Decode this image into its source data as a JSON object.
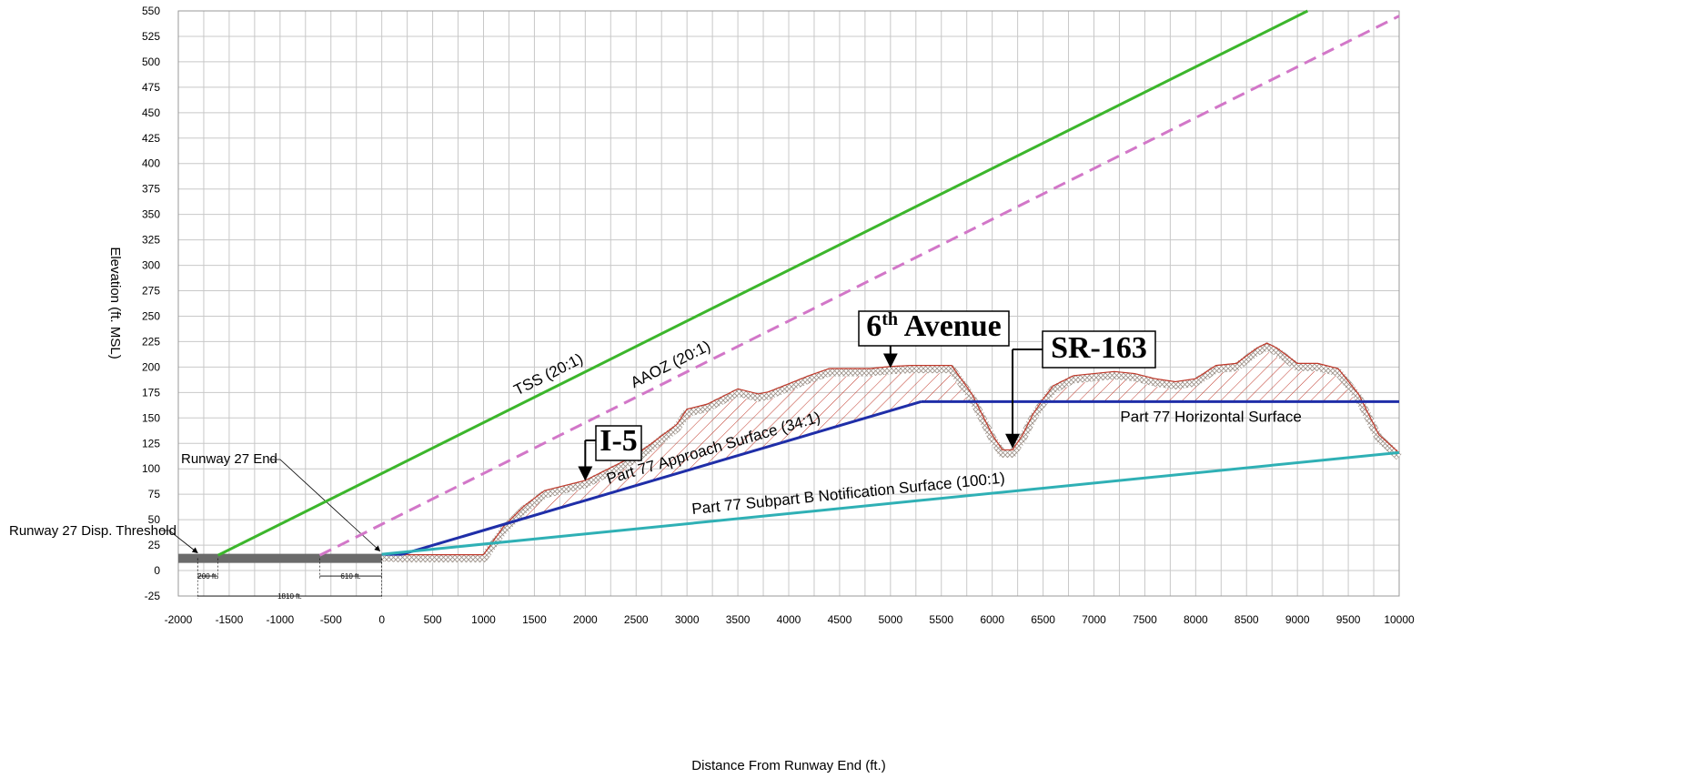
{
  "chart_data": {
    "type": "line",
    "xlabel": "Distance From Runway End (ft.)",
    "ylabel": "Elevation (ft. MSL)",
    "xlim": [
      -2000,
      10000
    ],
    "ylim": [
      -25,
      550
    ],
    "x_ticks": [
      -2000,
      -1500,
      -1000,
      -500,
      0,
      500,
      1000,
      1500,
      2000,
      2500,
      3000,
      3500,
      4000,
      4500,
      5000,
      5500,
      6000,
      6500,
      7000,
      7500,
      8000,
      8500,
      9000,
      9500,
      10000
    ],
    "y_ticks": [
      -25,
      0,
      25,
      50,
      75,
      100,
      125,
      150,
      175,
      200,
      225,
      250,
      275,
      300,
      325,
      350,
      375,
      400,
      425,
      450,
      475,
      500,
      525,
      550
    ],
    "grid": true,
    "series": [
      {
        "name": "TSS (20:1)",
        "color": "#3cb62c",
        "style": "solid",
        "x": [
          -1610,
          9100
        ],
        "y": [
          15,
          550
        ]
      },
      {
        "name": "AAOZ (20:1)",
        "color": "#d277c8",
        "style": "dashed",
        "x": [
          -610,
          10000
        ],
        "y": [
          15,
          545
        ]
      },
      {
        "name": "Part 77 Approach Surface (34:1)",
        "color": "#1f2ea8",
        "style": "solid",
        "x": [
          0,
          200,
          5300
        ],
        "y": [
          16,
          16,
          166
        ]
      },
      {
        "name": "Part 77 Horizontal Surface",
        "color": "#1f2ea8",
        "style": "solid",
        "x": [
          5300,
          10000
        ],
        "y": [
          166,
          166
        ]
      },
      {
        "name": "Part 77 Subpart B Notification Surface (100:1)",
        "color": "#2fb0b5",
        "style": "solid",
        "x": [
          0,
          10000
        ],
        "y": [
          16,
          116
        ]
      }
    ],
    "terrain": {
      "x": [
        0,
        200,
        500,
        800,
        1000,
        1200,
        1400,
        1600,
        1800,
        2000,
        2200,
        2500,
        2700,
        2900,
        3000,
        3200,
        3500,
        3700,
        3800,
        4000,
        4200,
        4400,
        4600,
        4800,
        5000,
        5200,
        5400,
        5600,
        5800,
        6000,
        6100,
        6200,
        6300,
        6400,
        6500,
        6600,
        6800,
        7000,
        7200,
        7400,
        7600,
        7800,
        8000,
        8200,
        8400,
        8600,
        8700,
        8800,
        9000,
        9200,
        9400,
        9600,
        9800,
        10000
      ],
      "y": [
        13,
        12,
        12,
        12,
        12,
        40,
        60,
        75,
        80,
        85,
        95,
        110,
        125,
        140,
        155,
        160,
        175,
        170,
        172,
        180,
        188,
        195,
        195,
        195,
        197,
        198,
        198,
        198,
        170,
        130,
        115,
        115,
        130,
        150,
        165,
        178,
        188,
        190,
        192,
        190,
        185,
        182,
        185,
        198,
        200,
        215,
        220,
        215,
        200,
        200,
        195,
        170,
        130,
        112
      ],
      "color": "#c0392b",
      "label": "terrain profile"
    },
    "annotations": [
      {
        "text": "6th Avenue",
        "main": "6",
        "sup": "th",
        "rest": " Avenue",
        "x": 5000,
        "y": 197
      },
      {
        "text": "SR-163",
        "x": 6200,
        "y": 118
      },
      {
        "text": "I-5",
        "x": 2000,
        "y": 86
      }
    ],
    "runway": {
      "x_start": -2000,
      "x_end": 0,
      "y": 12,
      "end_label": "Runway 27 End",
      "threshold_label": "Runway 27 Disp. Threshold",
      "dim_200": "200 ft.",
      "dim_610": "610 ft.",
      "dim_1810": "1810 ft."
    }
  }
}
